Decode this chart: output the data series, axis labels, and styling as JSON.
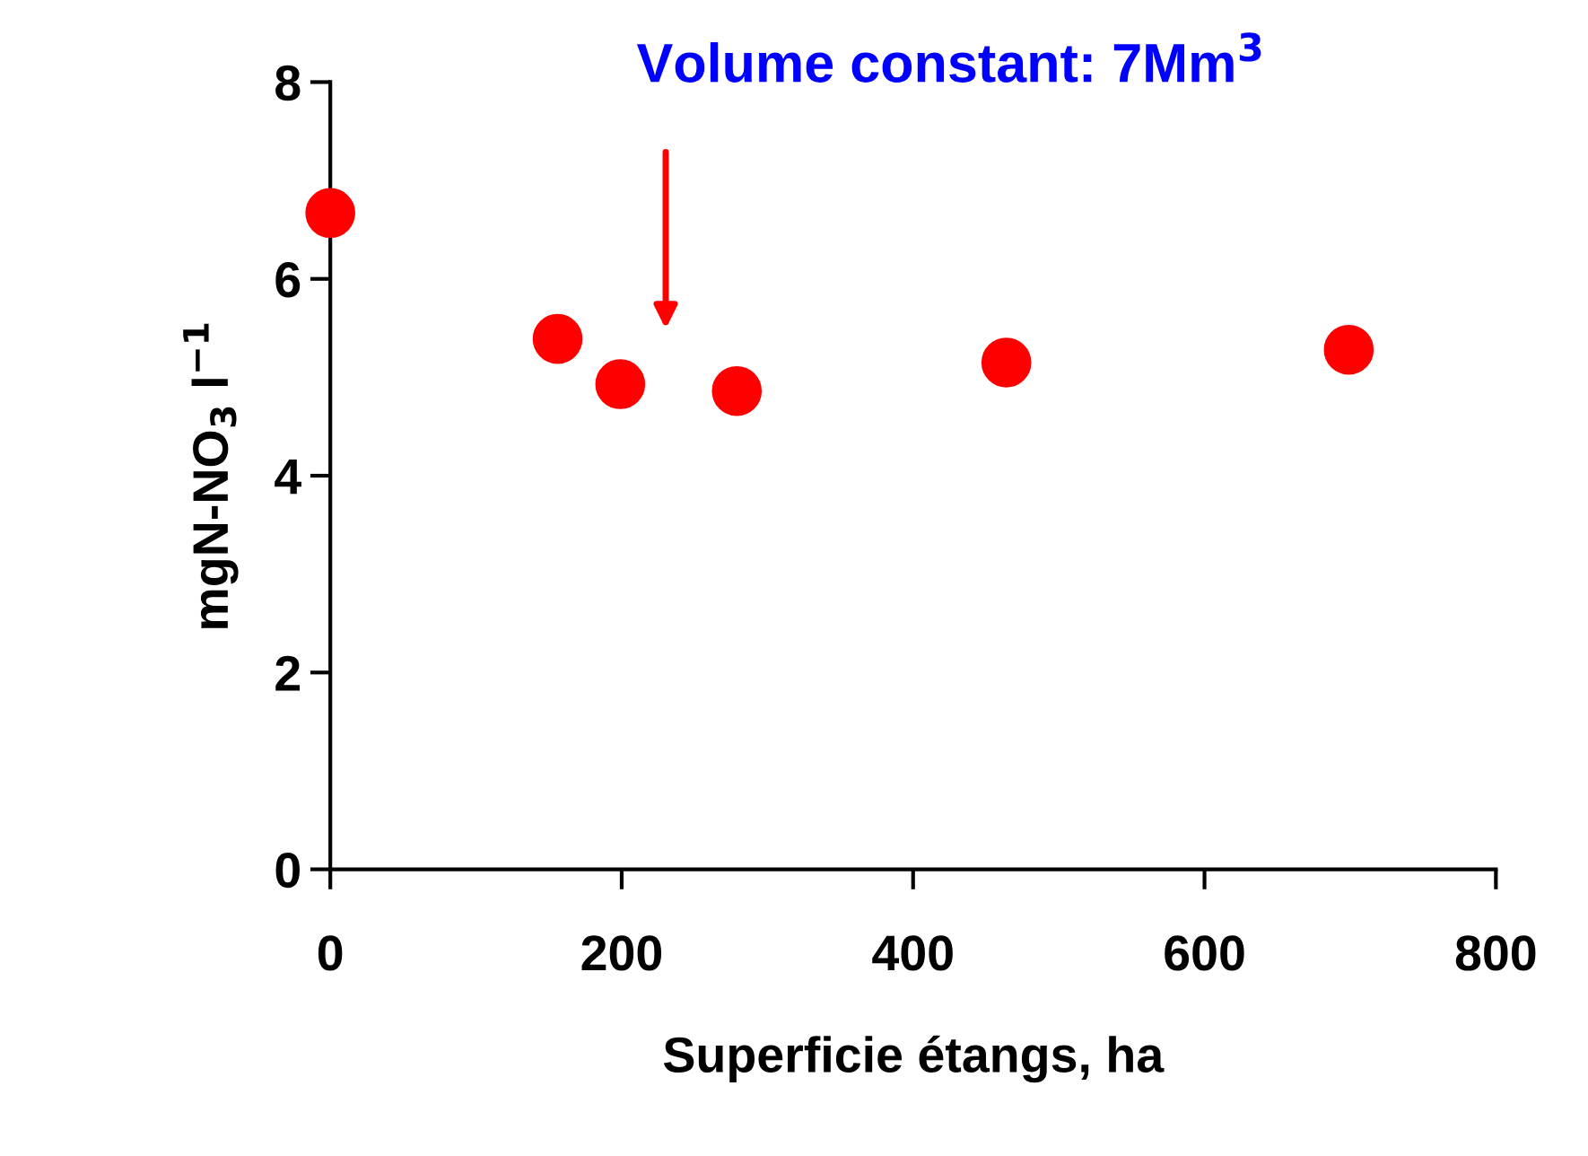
{
  "chart_data": {
    "type": "scatter",
    "xlabel": "Superficie étangs, ha",
    "ylabel": "mgN-NO$_{3}$ l$^{−1}$",
    "x": [
      0,
      156,
      199,
      279,
      464,
      699
    ],
    "series": [
      {
        "color": "#ff0000",
        "values": [
          6.67,
          5.39,
          4.93,
          4.86,
          5.15,
          5.28
        ]
      }
    ],
    "annotations": [
      "Volume constant: 7Mm$^{3}$"
    ],
    "marker": "circle",
    "grid": false,
    "legend": false,
    "xlim": [
      0,
      800
    ],
    "xticks": [
      0,
      200,
      400,
      600,
      800
    ],
    "ylim": [
      0,
      8
    ],
    "yticks": [
      0,
      2,
      4,
      6,
      8
    ]
  }
}
